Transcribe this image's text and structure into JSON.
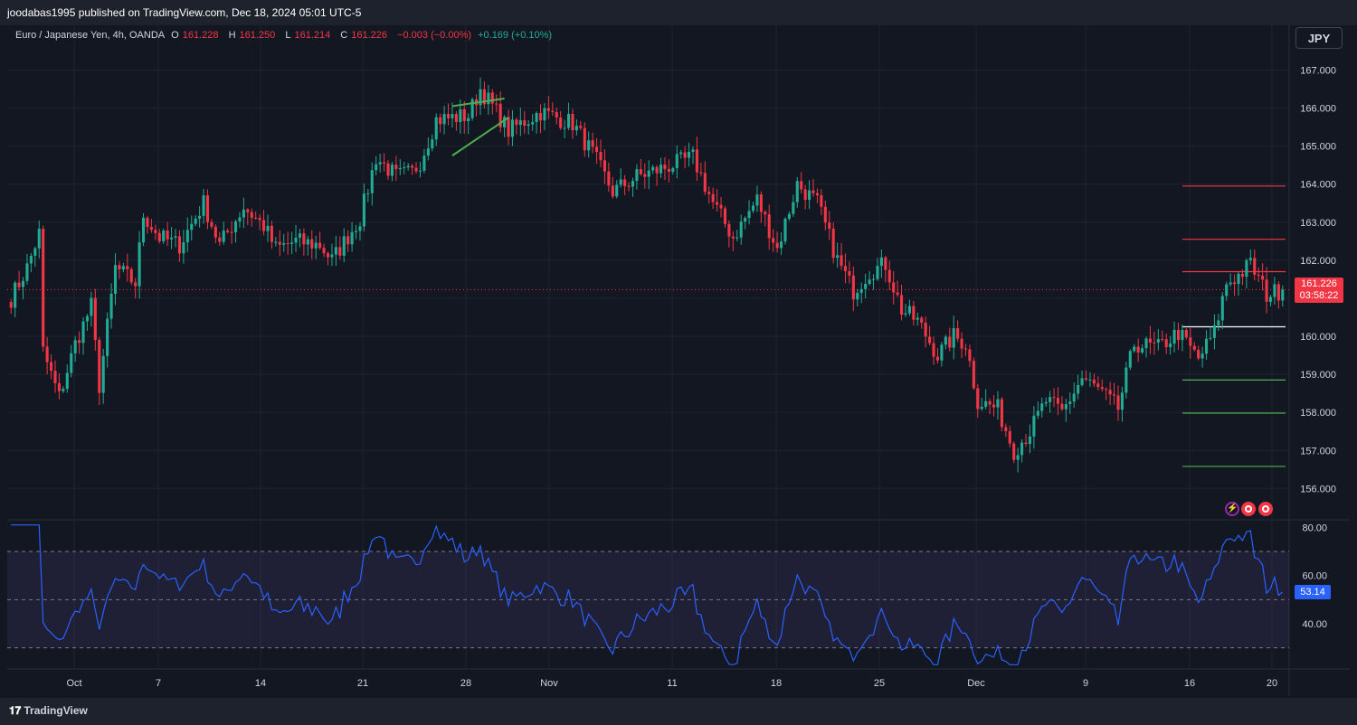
{
  "publisher": "joodabas1995 published on TradingView.com, Dec 18, 2024 05:01 UTC-5",
  "legend": {
    "symbol": "Euro / Japanese Yen, 4h, OANDA",
    "o_label": "O",
    "o_value": "161.228",
    "h_label": "H",
    "h_value": "161.250",
    "l_label": "L",
    "l_value": "161.214",
    "c_label": "C",
    "c_value": "161.226",
    "change": "−0.003 (−0.00%)",
    "change2": "+0.169 (+0.10%)"
  },
  "currency_button": "JPY",
  "price_tag": {
    "price": "161.226",
    "countdown": "03:58:22"
  },
  "rsi_tag": "53.14",
  "footer_logo": "TradingView",
  "icons": [
    "lightning-icon",
    "flag-icon",
    "flag-icon"
  ],
  "colors": {
    "up": "#22ab94",
    "down": "#f23645",
    "rsi": "#2962ff",
    "background": "#131722",
    "rsi_band": "#7e57c2"
  },
  "chart_data": [
    {
      "type": "candlestick",
      "y_axis_ticks": [
        "167.000",
        "166.000",
        "165.000",
        "164.000",
        "163.000",
        "162.000",
        "161.000",
        "160.000",
        "159.000",
        "158.000",
        "157.000",
        "156.000"
      ],
      "x_axis_ticks": [
        "Oct",
        "7",
        "14",
        "21",
        "28",
        "Nov",
        "11",
        "18",
        "25",
        "Dec",
        "9",
        "16",
        "20"
      ],
      "ylim": [
        155.2,
        167.7
      ],
      "current_price": 161.226,
      "anchors": [
        [
          0,
          161.0
        ],
        [
          4,
          161.8
        ],
        [
          7,
          162.7
        ],
        [
          8,
          159.6
        ],
        [
          12,
          158.4
        ],
        [
          16,
          159.8
        ],
        [
          20,
          160.8
        ],
        [
          22,
          158.7
        ],
        [
          26,
          161.8
        ],
        [
          31,
          161.4
        ],
        [
          33,
          163.2
        ],
        [
          37,
          162.6
        ],
        [
          42,
          162.4
        ],
        [
          48,
          163.5
        ],
        [
          52,
          162.4
        ],
        [
          58,
          163.4
        ],
        [
          63,
          162.9
        ],
        [
          66,
          162.3
        ],
        [
          71,
          162.5
        ],
        [
          77,
          162.4
        ],
        [
          80,
          162.0
        ],
        [
          87,
          163.1
        ],
        [
          91,
          164.7
        ],
        [
          96,
          164.2
        ],
        [
          100,
          164.3
        ],
        [
          102,
          164.6
        ],
        [
          106,
          165.7
        ],
        [
          114,
          165.8
        ],
        [
          117,
          166.5
        ],
        [
          121,
          165.9
        ],
        [
          124,
          165.4
        ],
        [
          132,
          165.9
        ],
        [
          140,
          165.6
        ],
        [
          145,
          164.8
        ],
        [
          150,
          163.8
        ],
        [
          156,
          164.2
        ],
        [
          162,
          164.4
        ],
        [
          170,
          164.7
        ],
        [
          175,
          163.5
        ],
        [
          180,
          162.6
        ],
        [
          186,
          163.6
        ],
        [
          191,
          162.3
        ],
        [
          196,
          164.0
        ],
        [
          201,
          163.5
        ],
        [
          206,
          162.0
        ],
        [
          210,
          161.2
        ],
        [
          214,
          161.7
        ],
        [
          218,
          161.9
        ],
        [
          222,
          160.7
        ],
        [
          226,
          160.4
        ],
        [
          231,
          159.5
        ],
        [
          235,
          160.0
        ],
        [
          238,
          159.8
        ],
        [
          241,
          158.3
        ],
        [
          246,
          158.1
        ],
        [
          250,
          157.0
        ],
        [
          254,
          157.5
        ],
        [
          258,
          158.3
        ],
        [
          262,
          158.0
        ],
        [
          267,
          158.9
        ],
        [
          271,
          158.6
        ],
        [
          276,
          158.1
        ],
        [
          280,
          159.8
        ],
        [
          286,
          159.7
        ],
        [
          291,
          160.1
        ],
        [
          296,
          159.4
        ],
        [
          300,
          160.1
        ],
        [
          303,
          161.4
        ],
        [
          306,
          161.6
        ],
        [
          309,
          161.9
        ],
        [
          313,
          161.1
        ],
        [
          317,
          161.22
        ]
      ],
      "horizontal_lines": [
        {
          "price": 163.95,
          "color": "#f23645"
        },
        {
          "price": 162.55,
          "color": "#f23645"
        },
        {
          "price": 161.7,
          "color": "#f23645"
        },
        {
          "price": 160.25,
          "color": "#ffffff"
        },
        {
          "price": 158.85,
          "color": "#4caf50"
        },
        {
          "price": 157.98,
          "color": "#4caf50"
        },
        {
          "price": 156.58,
          "color": "#4caf50"
        }
      ],
      "annotation": "rising wedge (two green trend lines)"
    },
    {
      "type": "line",
      "indicator": "RSI",
      "y_axis_ticks": [
        "80.00",
        "60.00",
        "40.00"
      ],
      "ylim": [
        22,
        82
      ],
      "upper_band": 70,
      "middle_band": 50,
      "lower_band": 30,
      "current_value": 53.14
    }
  ]
}
